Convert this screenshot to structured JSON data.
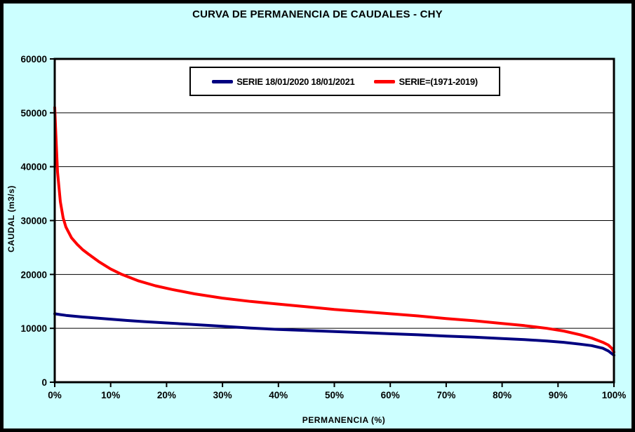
{
  "window": {
    "title": "CURVA DE PERMANENCIA DE CAUDALES - CHY"
  },
  "colors": {
    "background": "#CCFFFF",
    "plot_background": "#FFFFFF",
    "frame": "#000000",
    "series_blue": "#000080",
    "series_red": "#FF0000"
  },
  "chart_data": {
    "type": "line",
    "title": "CURVA DE PERMANENCIA DE CAUDALES - CHY",
    "xlabel": "PERMANENCIA  (%)",
    "ylabel": "CAUDAL  (m3/s)",
    "xlim": [
      0,
      100
    ],
    "ylim": [
      0,
      60000
    ],
    "x_ticks": [
      0,
      10,
      20,
      30,
      40,
      50,
      60,
      70,
      80,
      90,
      100
    ],
    "x_tick_labels": [
      "0%",
      "10%",
      "20%",
      "30%",
      "40%",
      "50%",
      "60%",
      "70%",
      "80%",
      "90%",
      "100%"
    ],
    "y_ticks": [
      0,
      10000,
      20000,
      30000,
      40000,
      50000,
      60000
    ],
    "y_tick_labels": [
      "0",
      "10000",
      "20000",
      "30000",
      "40000",
      "50000",
      "60000"
    ],
    "grid": "horizontal",
    "legend_position": "top-center",
    "series": [
      {
        "name": "SERIE 18/01/2020 18/01/2021",
        "color": "#000080",
        "x": [
          0,
          1,
          2,
          3,
          5,
          7,
          10,
          13,
          16,
          20,
          24,
          28,
          32,
          35,
          40,
          45,
          50,
          55,
          60,
          65,
          70,
          75,
          80,
          84,
          88,
          91,
          94,
          96,
          98,
          99,
          100
        ],
        "y": [
          12700,
          12550,
          12400,
          12300,
          12100,
          11950,
          11700,
          11450,
          11250,
          11000,
          10750,
          10500,
          10250,
          10050,
          9800,
          9600,
          9400,
          9200,
          9000,
          8800,
          8550,
          8350,
          8100,
          7900,
          7650,
          7400,
          7050,
          6800,
          6300,
          5800,
          5000
        ]
      },
      {
        "name": "SERIE=(1971-2019)",
        "color": "#FF0000",
        "x": [
          0,
          0.2,
          0.5,
          1,
          1.5,
          2,
          3,
          4,
          5,
          6,
          8,
          10,
          12,
          15,
          18,
          21,
          25,
          30,
          35,
          40,
          45,
          50,
          55,
          60,
          65,
          70,
          75,
          80,
          84,
          88,
          91,
          94,
          96,
          98,
          99,
          99.6,
          100
        ],
        "y": [
          51000,
          46000,
          39000,
          33500,
          30500,
          28800,
          26800,
          25600,
          24600,
          23800,
          22300,
          21000,
          20000,
          18800,
          17900,
          17200,
          16400,
          15600,
          15000,
          14500,
          14000,
          13500,
          13100,
          12700,
          12300,
          11800,
          11400,
          10900,
          10500,
          10000,
          9500,
          8800,
          8200,
          7400,
          6900,
          6300,
          5600
        ]
      }
    ]
  }
}
